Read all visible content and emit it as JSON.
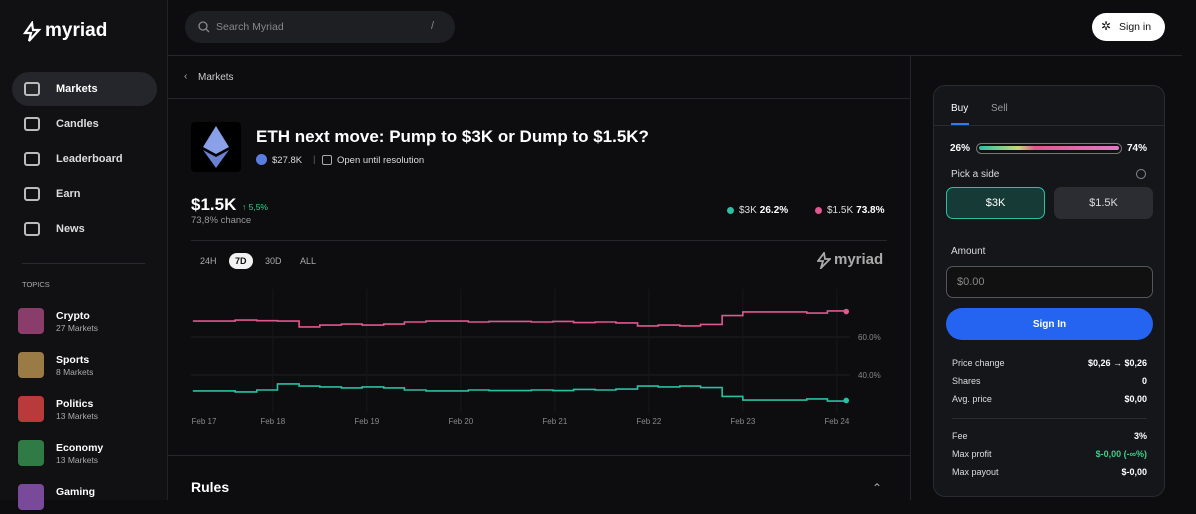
{
  "sidebar": {
    "brand": "myriad",
    "nav": [
      "Markets",
      "Candles",
      "Leaderboard",
      "Earn",
      "News"
    ],
    "topics_heading": "TOPICS",
    "topics": [
      {
        "name": "Crypto",
        "count": "27 Markets"
      },
      {
        "name": "Sports",
        "count": "8 Markets"
      },
      {
        "name": "Politics",
        "count": "13 Markets"
      },
      {
        "name": "Economy",
        "count": "13 Markets"
      },
      {
        "name": "Gaming"
      }
    ]
  },
  "topbar": {
    "search_placeholder": "Search Myriad",
    "search_shortcut": "/",
    "sign_in": "Sign in"
  },
  "market": {
    "breadcrumb": "Markets",
    "title": "ETH next move: Pump to $3K or Dump to $1.5K?",
    "volume": "$27.8K",
    "status": "Open until resolution",
    "price": "$1.5K",
    "change": "↑ 5,5%",
    "chance": "73,8% chance",
    "outcomes": [
      {
        "name": "$3K",
        "percent": "26.2%"
      },
      {
        "name": "$1.5K",
        "percent": "73.8%"
      }
    ],
    "ranges": [
      "24H",
      "7D",
      "30D",
      "ALL"
    ],
    "active_range": "7D",
    "watermark": "myriad"
  },
  "chart_data": {
    "type": "line",
    "x": [
      0.15,
      0.38,
      0.6,
      0.83,
      1.05,
      1.28,
      1.5,
      1.73,
      1.95,
      2.18,
      2.4,
      2.63,
      2.85,
      3.08,
      3.3,
      3.53,
      3.75,
      3.98,
      4.2,
      4.43,
      4.65,
      4.88,
      5.1,
      5.33,
      5.55,
      5.78,
      6.0,
      6.23,
      6.45,
      6.68,
      6.9,
      7.1
    ],
    "series": [
      {
        "name": "$1.5K",
        "color": "#e0588f",
        "values": [
          68.4,
          68.4,
          68.9,
          68.6,
          68.4,
          65.3,
          66.3,
          66.8,
          66.3,
          66.8,
          67.9,
          68.4,
          68.4,
          67.9,
          68.2,
          68.2,
          67.9,
          68.2,
          67.6,
          67.9,
          67.4,
          65.8,
          66.3,
          65.8,
          66.6,
          71.3,
          73.2,
          73.2,
          73.2,
          72.6,
          73.7,
          73.4
        ]
      },
      {
        "name": "$3K",
        "color": "#2bbfa4",
        "values": [
          31.6,
          31.6,
          31.1,
          32.1,
          35.3,
          34.2,
          33.7,
          33.2,
          33.7,
          33.2,
          32.1,
          31.6,
          31.6,
          32.1,
          31.8,
          31.8,
          32.1,
          31.8,
          32.4,
          32.1,
          32.6,
          34.2,
          33.7,
          34.2,
          33.4,
          28.7,
          26.8,
          26.8,
          26.8,
          27.4,
          26.3,
          26.6
        ]
      }
    ],
    "xlim": [
      0.13,
      7.14
    ],
    "xticks": [
      {
        "value": 0,
        "label": "Feb 17"
      },
      {
        "value": 1,
        "label": "Feb 18"
      },
      {
        "value": 2,
        "label": "Feb 19"
      },
      {
        "value": 3,
        "label": "Feb 20"
      },
      {
        "value": 4,
        "label": "Feb 21"
      },
      {
        "value": 5,
        "label": "Feb 22"
      },
      {
        "value": 6,
        "label": "Feb 23"
      },
      {
        "value": 7,
        "label": "Feb 24"
      }
    ],
    "ylim": [
      20,
      80
    ],
    "yticks": [
      {
        "value": 60,
        "label": "60.0%"
      },
      {
        "value": 40,
        "label": "40.0%"
      }
    ],
    "grid": true
  },
  "trade": {
    "tabs": [
      "Buy",
      "Sell"
    ],
    "left_percent": "26%",
    "right_percent": "74%",
    "pick_side": "Pick a side",
    "sides": [
      "$3K",
      "$1.5K"
    ],
    "amount_label": "Amount",
    "amount_placeholder": "$0.00",
    "submit": "Sign In",
    "summary": [
      [
        "Price change",
        "$0,26 → $0,26"
      ],
      [
        "Shares",
        "0"
      ],
      [
        "Avg. price",
        "$0,00"
      ]
    ],
    "fees": [
      [
        "Fee",
        "3%"
      ],
      [
        "Max profit",
        "$-0,00 (-∞%)"
      ],
      [
        "Max payout",
        "$-0,00"
      ]
    ]
  },
  "rules": {
    "title": "Rules"
  }
}
